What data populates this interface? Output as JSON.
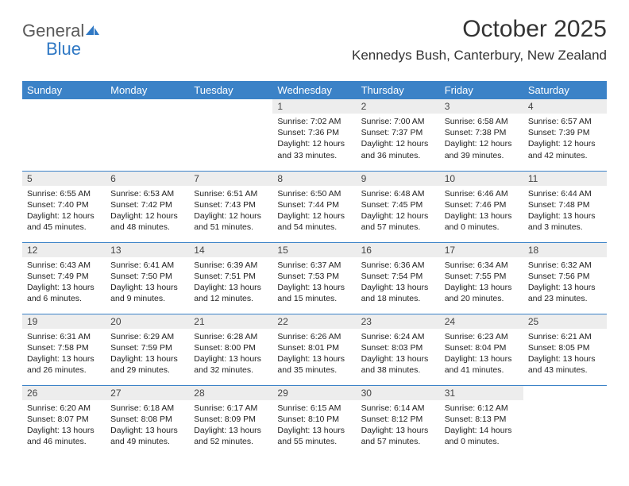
{
  "brand": {
    "name_part1": "General",
    "name_part2": "Blue"
  },
  "title": "October 2025",
  "location": "Kennedys Bush, Canterbury, New Zealand",
  "colors": {
    "header_bg": "#3b82c7",
    "header_text": "#ffffff",
    "daynum_bg": "#ededed",
    "rule": "#3b82c7",
    "page_bg": "#ffffff"
  },
  "day_headers": [
    "Sunday",
    "Monday",
    "Tuesday",
    "Wednesday",
    "Thursday",
    "Friday",
    "Saturday"
  ],
  "weeks": [
    [
      {
        "n": "",
        "sr": "",
        "ss": "",
        "dl1": "",
        "dl2": ""
      },
      {
        "n": "",
        "sr": "",
        "ss": "",
        "dl1": "",
        "dl2": ""
      },
      {
        "n": "",
        "sr": "",
        "ss": "",
        "dl1": "",
        "dl2": ""
      },
      {
        "n": "1",
        "sr": "Sunrise: 7:02 AM",
        "ss": "Sunset: 7:36 PM",
        "dl1": "Daylight: 12 hours",
        "dl2": "and 33 minutes."
      },
      {
        "n": "2",
        "sr": "Sunrise: 7:00 AM",
        "ss": "Sunset: 7:37 PM",
        "dl1": "Daylight: 12 hours",
        "dl2": "and 36 minutes."
      },
      {
        "n": "3",
        "sr": "Sunrise: 6:58 AM",
        "ss": "Sunset: 7:38 PM",
        "dl1": "Daylight: 12 hours",
        "dl2": "and 39 minutes."
      },
      {
        "n": "4",
        "sr": "Sunrise: 6:57 AM",
        "ss": "Sunset: 7:39 PM",
        "dl1": "Daylight: 12 hours",
        "dl2": "and 42 minutes."
      }
    ],
    [
      {
        "n": "5",
        "sr": "Sunrise: 6:55 AM",
        "ss": "Sunset: 7:40 PM",
        "dl1": "Daylight: 12 hours",
        "dl2": "and 45 minutes."
      },
      {
        "n": "6",
        "sr": "Sunrise: 6:53 AM",
        "ss": "Sunset: 7:42 PM",
        "dl1": "Daylight: 12 hours",
        "dl2": "and 48 minutes."
      },
      {
        "n": "7",
        "sr": "Sunrise: 6:51 AM",
        "ss": "Sunset: 7:43 PM",
        "dl1": "Daylight: 12 hours",
        "dl2": "and 51 minutes."
      },
      {
        "n": "8",
        "sr": "Sunrise: 6:50 AM",
        "ss": "Sunset: 7:44 PM",
        "dl1": "Daylight: 12 hours",
        "dl2": "and 54 minutes."
      },
      {
        "n": "9",
        "sr": "Sunrise: 6:48 AM",
        "ss": "Sunset: 7:45 PM",
        "dl1": "Daylight: 12 hours",
        "dl2": "and 57 minutes."
      },
      {
        "n": "10",
        "sr": "Sunrise: 6:46 AM",
        "ss": "Sunset: 7:46 PM",
        "dl1": "Daylight: 13 hours",
        "dl2": "and 0 minutes."
      },
      {
        "n": "11",
        "sr": "Sunrise: 6:44 AM",
        "ss": "Sunset: 7:48 PM",
        "dl1": "Daylight: 13 hours",
        "dl2": "and 3 minutes."
      }
    ],
    [
      {
        "n": "12",
        "sr": "Sunrise: 6:43 AM",
        "ss": "Sunset: 7:49 PM",
        "dl1": "Daylight: 13 hours",
        "dl2": "and 6 minutes."
      },
      {
        "n": "13",
        "sr": "Sunrise: 6:41 AM",
        "ss": "Sunset: 7:50 PM",
        "dl1": "Daylight: 13 hours",
        "dl2": "and 9 minutes."
      },
      {
        "n": "14",
        "sr": "Sunrise: 6:39 AM",
        "ss": "Sunset: 7:51 PM",
        "dl1": "Daylight: 13 hours",
        "dl2": "and 12 minutes."
      },
      {
        "n": "15",
        "sr": "Sunrise: 6:37 AM",
        "ss": "Sunset: 7:53 PM",
        "dl1": "Daylight: 13 hours",
        "dl2": "and 15 minutes."
      },
      {
        "n": "16",
        "sr": "Sunrise: 6:36 AM",
        "ss": "Sunset: 7:54 PM",
        "dl1": "Daylight: 13 hours",
        "dl2": "and 18 minutes."
      },
      {
        "n": "17",
        "sr": "Sunrise: 6:34 AM",
        "ss": "Sunset: 7:55 PM",
        "dl1": "Daylight: 13 hours",
        "dl2": "and 20 minutes."
      },
      {
        "n": "18",
        "sr": "Sunrise: 6:32 AM",
        "ss": "Sunset: 7:56 PM",
        "dl1": "Daylight: 13 hours",
        "dl2": "and 23 minutes."
      }
    ],
    [
      {
        "n": "19",
        "sr": "Sunrise: 6:31 AM",
        "ss": "Sunset: 7:58 PM",
        "dl1": "Daylight: 13 hours",
        "dl2": "and 26 minutes."
      },
      {
        "n": "20",
        "sr": "Sunrise: 6:29 AM",
        "ss": "Sunset: 7:59 PM",
        "dl1": "Daylight: 13 hours",
        "dl2": "and 29 minutes."
      },
      {
        "n": "21",
        "sr": "Sunrise: 6:28 AM",
        "ss": "Sunset: 8:00 PM",
        "dl1": "Daylight: 13 hours",
        "dl2": "and 32 minutes."
      },
      {
        "n": "22",
        "sr": "Sunrise: 6:26 AM",
        "ss": "Sunset: 8:01 PM",
        "dl1": "Daylight: 13 hours",
        "dl2": "and 35 minutes."
      },
      {
        "n": "23",
        "sr": "Sunrise: 6:24 AM",
        "ss": "Sunset: 8:03 PM",
        "dl1": "Daylight: 13 hours",
        "dl2": "and 38 minutes."
      },
      {
        "n": "24",
        "sr": "Sunrise: 6:23 AM",
        "ss": "Sunset: 8:04 PM",
        "dl1": "Daylight: 13 hours",
        "dl2": "and 41 minutes."
      },
      {
        "n": "25",
        "sr": "Sunrise: 6:21 AM",
        "ss": "Sunset: 8:05 PM",
        "dl1": "Daylight: 13 hours",
        "dl2": "and 43 minutes."
      }
    ],
    [
      {
        "n": "26",
        "sr": "Sunrise: 6:20 AM",
        "ss": "Sunset: 8:07 PM",
        "dl1": "Daylight: 13 hours",
        "dl2": "and 46 minutes."
      },
      {
        "n": "27",
        "sr": "Sunrise: 6:18 AM",
        "ss": "Sunset: 8:08 PM",
        "dl1": "Daylight: 13 hours",
        "dl2": "and 49 minutes."
      },
      {
        "n": "28",
        "sr": "Sunrise: 6:17 AM",
        "ss": "Sunset: 8:09 PM",
        "dl1": "Daylight: 13 hours",
        "dl2": "and 52 minutes."
      },
      {
        "n": "29",
        "sr": "Sunrise: 6:15 AM",
        "ss": "Sunset: 8:10 PM",
        "dl1": "Daylight: 13 hours",
        "dl2": "and 55 minutes."
      },
      {
        "n": "30",
        "sr": "Sunrise: 6:14 AM",
        "ss": "Sunset: 8:12 PM",
        "dl1": "Daylight: 13 hours",
        "dl2": "and 57 minutes."
      },
      {
        "n": "31",
        "sr": "Sunrise: 6:12 AM",
        "ss": "Sunset: 8:13 PM",
        "dl1": "Daylight: 14 hours",
        "dl2": "and 0 minutes."
      },
      {
        "n": "",
        "sr": "",
        "ss": "",
        "dl1": "",
        "dl2": ""
      }
    ]
  ]
}
